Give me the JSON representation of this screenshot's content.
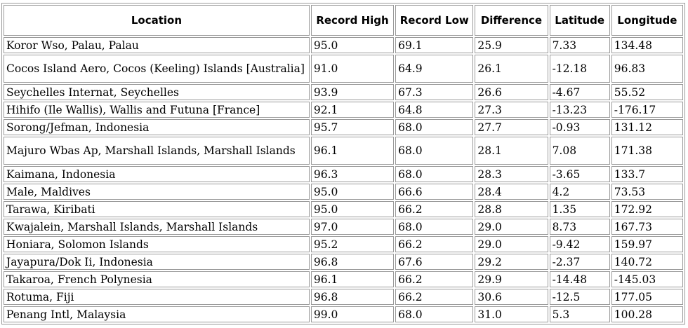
{
  "table": {
    "headers": [
      "Location",
      "Record High",
      "Record Low",
      "Difference",
      "Latitude",
      "Longitude"
    ],
    "rows": [
      [
        "Koror Wso, Palau, Palau",
        "95.0",
        "69.1",
        "25.9",
        "7.33",
        "134.48"
      ],
      [
        "Cocos Island Aero, Cocos (Keeling) Islands [Australia]",
        "91.0",
        "64.9",
        "26.1",
        "-12.18",
        "96.83"
      ],
      [
        "Seychelles Internat, Seychelles",
        "93.9",
        "67.3",
        "26.6",
        "-4.67",
        "55.52"
      ],
      [
        "Hihifo (Ile Wallis), Wallis and Futuna [France]",
        "92.1",
        "64.8",
        "27.3",
        "-13.23",
        "-176.17"
      ],
      [
        "Sorong/Jefman, Indonesia",
        "95.7",
        "68.0",
        "27.7",
        "-0.93",
        "131.12"
      ],
      [
        "Majuro Wbas Ap, Marshall Islands, Marshall Islands",
        "96.1",
        "68.0",
        "28.1",
        "7.08",
        "171.38"
      ],
      [
        "Kaimana, Indonesia",
        "96.3",
        "68.0",
        "28.3",
        "-3.65",
        "133.7"
      ],
      [
        "Male, Maldives",
        "95.0",
        "66.6",
        "28.4",
        "4.2",
        "73.53"
      ],
      [
        "Tarawa, Kiribati",
        "95.0",
        "66.2",
        "28.8",
        "1.35",
        "172.92"
      ],
      [
        "Kwajalein, Marshall Islands, Marshall Islands",
        "97.0",
        "68.0",
        "29.0",
        "8.73",
        "167.73"
      ],
      [
        "Honiara, Solomon Islands",
        "95.2",
        "66.2",
        "29.0",
        "-9.42",
        "159.97"
      ],
      [
        "Jayapura/Dok Ii, Indonesia",
        "96.8",
        "67.6",
        "29.2",
        "-2.37",
        "140.72"
      ],
      [
        "Takaroa, French Polynesia",
        "96.1",
        "66.2",
        "29.9",
        "-14.48",
        "-145.03"
      ],
      [
        "Rotuma, Fiji",
        "96.8",
        "66.2",
        "30.6",
        "-12.5",
        "177.05"
      ],
      [
        "Penang Intl, Malaysia",
        "99.0",
        "68.0",
        "31.0",
        "5.3",
        "100.28"
      ]
    ]
  }
}
